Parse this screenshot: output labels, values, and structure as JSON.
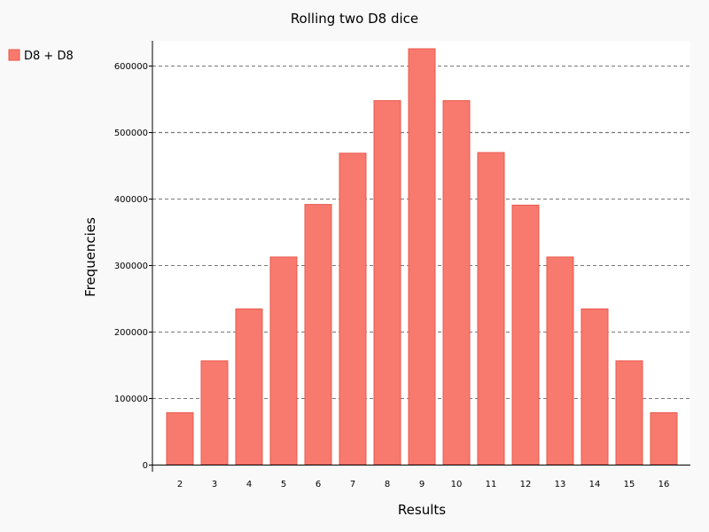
{
  "chart_data": {
    "type": "bar",
    "title": "Rolling two D8 dice",
    "xlabel": "Results",
    "ylabel": "Frequencies",
    "categories": [
      "2",
      "3",
      "4",
      "5",
      "6",
      "7",
      "8",
      "9",
      "10",
      "11",
      "12",
      "13",
      "14",
      "15",
      "16"
    ],
    "series": [
      {
        "name": "D8 + D8",
        "values": [
          78000,
          156000,
          234000,
          312000,
          391000,
          468000,
          547000,
          625000,
          547000,
          469000,
          390000,
          312000,
          234000,
          156000,
          78000
        ]
      }
    ],
    "ylim": [
      0,
      637000
    ],
    "yticks": [
      0,
      100000,
      200000,
      300000,
      400000,
      500000,
      600000
    ],
    "ytick_labels": [
      "0",
      "100000",
      "200000",
      "300000",
      "400000",
      "500000",
      "600000"
    ],
    "grid": "horizontal dashed",
    "legend_placement": "top-left",
    "colors": {
      "bar_fill": "#f87a6f",
      "bar_stroke": "#e8584c",
      "plot_background": "#ffffff",
      "page_background": "#f9f9f9",
      "grid": "#777777",
      "axis": "#000000"
    }
  }
}
